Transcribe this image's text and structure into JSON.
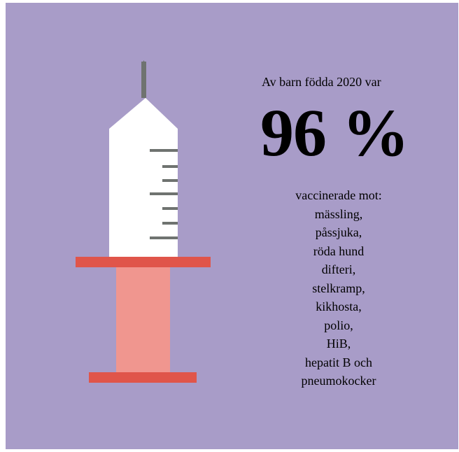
{
  "intro": "Av barn födda 2020 var",
  "percent": "96 %",
  "vaccines_heading": "vaccinerade mot:",
  "vaccines": [
    "mässling,",
    "påssjuka,",
    "röda hund",
    "difteri,",
    "stelkramp,",
    "kikhosta,",
    "polio,",
    "HiB,",
    "hepatit B och",
    "pneumokocker"
  ],
  "colors": {
    "background": "#a89cc8",
    "barrel": "#ffffff",
    "needle": "#6f7370",
    "flange": "#e0554a",
    "plunger": "#f0968f",
    "marks": "#6f7370"
  },
  "icon": "syringe-icon"
}
